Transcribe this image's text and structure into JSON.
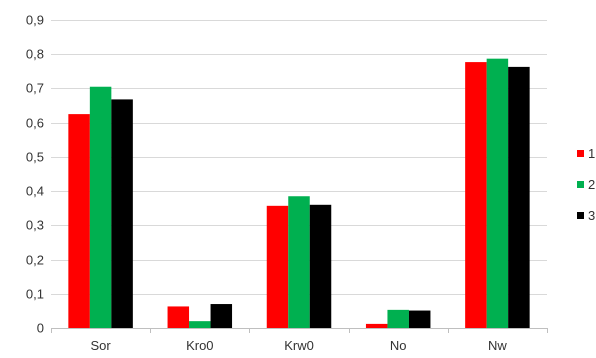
{
  "chart_data": {
    "type": "bar",
    "title": "",
    "xlabel": "",
    "ylabel": "",
    "categories": [
      "Sor",
      "Kro0",
      "Krw0",
      "No",
      "Nw"
    ],
    "series": [
      {
        "name": "1",
        "color": "#ff0000",
        "values": [
          0.625,
          0.063,
          0.357,
          0.012,
          0.777
        ]
      },
      {
        "name": "2",
        "color": "#00b050",
        "values": [
          0.705,
          0.02,
          0.385,
          0.053,
          0.787
        ]
      },
      {
        "name": "3",
        "color": "#000000",
        "values": [
          0.668,
          0.07,
          0.36,
          0.051,
          0.763
        ]
      }
    ],
    "ylim": [
      0,
      0.9
    ],
    "yticks": [
      "0",
      "0,1",
      "0,2",
      "0,3",
      "0,4",
      "0,5",
      "0,6",
      "0,7",
      "0,8",
      "0,9"
    ],
    "grid": true,
    "legend_position": "right"
  }
}
